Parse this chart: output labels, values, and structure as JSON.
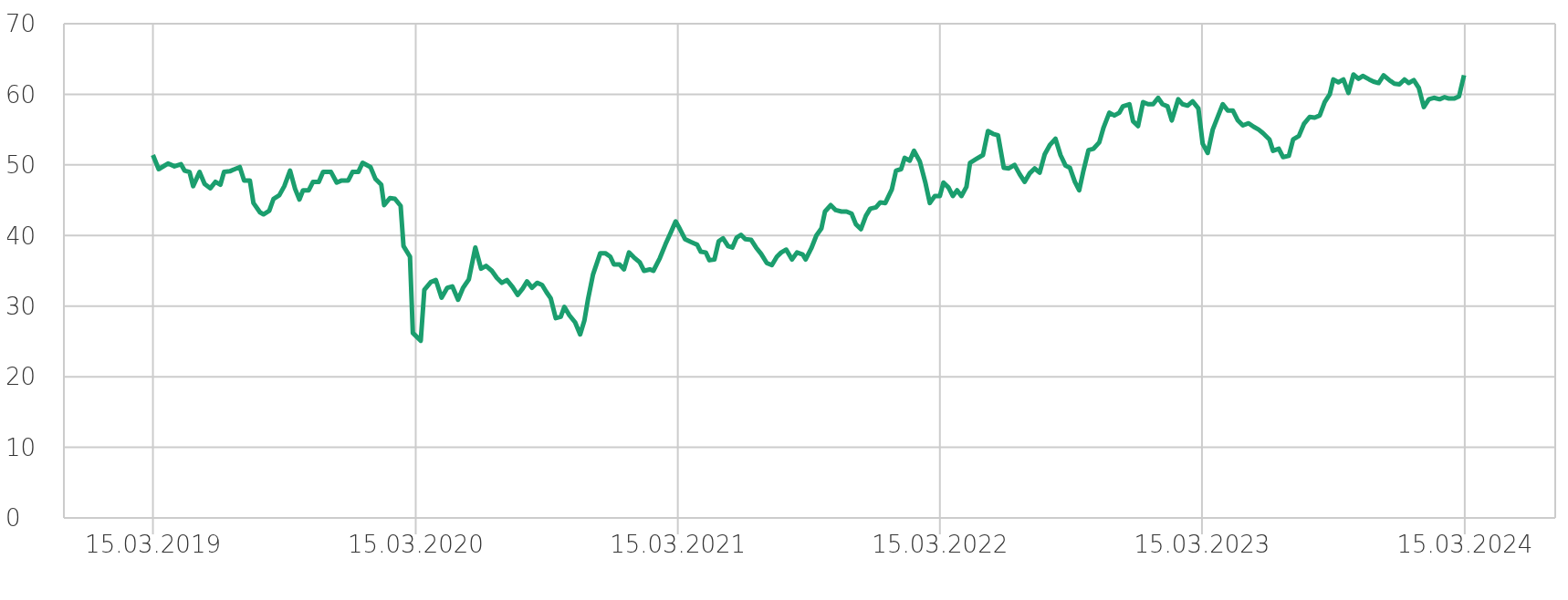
{
  "chart_data": {
    "type": "line",
    "x": [
      "2019-03-15",
      "2019-03-23",
      "2019-04-05",
      "2019-04-14",
      "2019-04-23",
      "2019-04-28",
      "2019-05-05",
      "2019-05-10",
      "2019-05-19",
      "2019-05-26",
      "2019-06-03",
      "2019-06-10",
      "2019-06-17",
      "2019-06-22",
      "2019-06-30",
      "2019-07-07",
      "2019-07-14",
      "2019-07-20",
      "2019-07-28",
      "2019-08-02",
      "2019-08-11",
      "2019-08-16",
      "2019-08-24",
      "2019-08-30",
      "2019-09-07",
      "2019-09-14",
      "2019-09-22",
      "2019-09-29",
      "2019-10-05",
      "2019-10-10",
      "2019-10-18",
      "2019-10-24",
      "2019-11-01",
      "2019-11-07",
      "2019-11-18",
      "2019-11-26",
      "2019-12-03",
      "2019-12-12",
      "2019-12-18",
      "2019-12-26",
      "2020-01-01",
      "2020-01-12",
      "2020-01-19",
      "2020-01-27",
      "2020-01-31",
      "2020-02-08",
      "2020-02-15",
      "2020-02-23",
      "2020-02-27",
      "2020-03-07",
      "2020-03-11",
      "2020-03-22",
      "2020-03-27",
      "2020-04-05",
      "2020-04-12",
      "2020-04-20",
      "2020-04-28",
      "2020-05-05",
      "2020-05-13",
      "2020-05-20",
      "2020-05-28",
      "2020-06-06",
      "2020-06-14",
      "2020-06-21",
      "2020-06-29",
      "2020-07-06",
      "2020-07-13",
      "2020-07-20",
      "2020-07-28",
      "2020-08-04",
      "2020-08-11",
      "2020-08-17",
      "2020-08-24",
      "2020-08-31",
      "2020-09-07",
      "2020-09-13",
      "2020-09-19",
      "2020-09-26",
      "2020-10-03",
      "2020-10-08",
      "2020-10-15",
      "2020-10-23",
      "2020-10-30",
      "2020-11-05",
      "2020-11-10",
      "2020-11-17",
      "2020-11-27",
      "2020-12-04",
      "2020-12-11",
      "2020-12-16",
      "2020-12-24",
      "2020-12-30",
      "2021-01-06",
      "2021-01-13",
      "2021-01-21",
      "2021-01-27",
      "2021-02-04",
      "2021-02-09",
      "2021-02-18",
      "2021-02-26",
      "2021-03-06",
      "2021-03-12",
      "2021-03-18",
      "2021-03-25",
      "2021-04-02",
      "2021-04-11",
      "2021-04-16",
      "2021-04-23",
      "2021-04-28",
      "2021-05-05",
      "2021-05-11",
      "2021-05-17",
      "2021-05-24",
      "2021-05-30",
      "2021-06-05",
      "2021-06-11",
      "2021-06-17",
      "2021-06-25",
      "2021-07-02",
      "2021-07-09",
      "2021-07-17",
      "2021-07-24",
      "2021-07-31",
      "2021-08-06",
      "2021-08-13",
      "2021-08-21",
      "2021-08-28",
      "2021-09-05",
      "2021-09-09",
      "2021-09-17",
      "2021-09-24",
      "2021-10-01",
      "2021-10-06",
      "2021-10-14",
      "2021-10-21",
      "2021-10-29",
      "2021-11-05",
      "2021-11-12",
      "2021-11-18",
      "2021-11-25",
      "2021-12-02",
      "2021-12-08",
      "2021-12-16",
      "2021-12-22",
      "2021-12-29",
      "2022-01-07",
      "2022-01-13",
      "2022-01-20",
      "2022-01-25",
      "2022-02-01",
      "2022-02-07",
      "2022-02-15",
      "2022-02-23",
      "2022-03-01",
      "2022-03-08",
      "2022-03-15",
      "2022-03-20",
      "2022-03-27",
      "2022-04-02",
      "2022-04-08",
      "2022-04-14",
      "2022-04-21",
      "2022-04-26",
      "2022-05-04",
      "2022-05-14",
      "2022-05-21",
      "2022-05-28",
      "2022-06-04",
      "2022-06-12",
      "2022-06-19",
      "2022-06-27",
      "2022-07-04",
      "2022-07-11",
      "2022-07-18",
      "2022-07-25",
      "2022-08-01",
      "2022-08-08",
      "2022-08-15",
      "2022-08-23",
      "2022-08-30",
      "2022-09-06",
      "2022-09-12",
      "2022-09-19",
      "2022-09-25",
      "2022-10-01",
      "2022-10-08",
      "2022-10-15",
      "2022-10-23",
      "2022-10-29",
      "2022-11-06",
      "2022-11-13",
      "2022-11-20",
      "2022-11-25",
      "2022-12-04",
      "2022-12-09",
      "2022-12-16",
      "2022-12-23",
      "2022-12-30",
      "2023-01-06",
      "2023-01-13",
      "2023-01-19",
      "2023-01-26",
      "2023-02-01",
      "2023-02-10",
      "2023-02-16",
      "2023-02-23",
      "2023-03-02",
      "2023-03-10",
      "2023-03-16",
      "2023-03-23",
      "2023-03-30",
      "2023-04-06",
      "2023-04-13",
      "2023-04-20",
      "2023-04-27",
      "2023-05-04",
      "2023-05-11",
      "2023-05-19",
      "2023-05-26",
      "2023-06-02",
      "2023-06-08",
      "2023-06-17",
      "2023-06-22",
      "2023-06-30",
      "2023-07-06",
      "2023-07-14",
      "2023-07-20",
      "2023-07-28",
      "2023-08-04",
      "2023-08-12",
      "2023-08-19",
      "2023-08-26",
      "2023-09-02",
      "2023-09-09",
      "2023-09-14",
      "2023-09-21",
      "2023-09-28",
      "2023-10-05",
      "2023-10-12",
      "2023-10-19",
      "2023-10-25",
      "2023-11-03",
      "2023-11-09",
      "2023-11-16",
      "2023-11-23",
      "2023-12-01",
      "2023-12-08",
      "2023-12-15",
      "2023-12-22",
      "2023-12-28",
      "2024-01-04",
      "2024-01-11",
      "2024-01-18",
      "2024-01-25",
      "2024-02-01",
      "2024-02-09",
      "2024-02-16",
      "2024-02-22",
      "2024-02-29",
      "2024-03-07",
      "2024-03-14"
    ],
    "series": [
      {
        "color": "#1b9e6e",
        "values": [
          51.4,
          49.4,
          50.2,
          49.8,
          50.1,
          49.2,
          49.0,
          47.0,
          49.0,
          47.3,
          46.7,
          47.6,
          47.2,
          49.0,
          49.1,
          49.4,
          49.7,
          47.8,
          47.8,
          44.6,
          43.3,
          43.0,
          43.5,
          45.2,
          45.7,
          47.0,
          49.2,
          46.6,
          45.1,
          46.4,
          46.4,
          47.6,
          47.6,
          49.0,
          49.0,
          47.5,
          47.8,
          47.8,
          49.0,
          49.0,
          50.3,
          49.7,
          48.0,
          47.2,
          44.3,
          45.3,
          45.2,
          44.2,
          38.5,
          37.0,
          26.2,
          25.1,
          32.3,
          33.4,
          33.7,
          31.2,
          32.6,
          32.8,
          30.9,
          32.6,
          33.8,
          38.3,
          35.3,
          35.7,
          35.0,
          34.0,
          33.3,
          33.7,
          32.7,
          31.6,
          32.5,
          33.5,
          32.6,
          33.3,
          33.0,
          32.0,
          31.1,
          28.3,
          28.5,
          29.9,
          28.7,
          27.7,
          26.0,
          28.0,
          31.0,
          34.5,
          37.5,
          37.5,
          37.0,
          35.9,
          35.9,
          35.2,
          37.6,
          36.9,
          36.2,
          35.0,
          35.2,
          35.0,
          36.8,
          38.8,
          40.6,
          42.0,
          40.9,
          39.5,
          39.1,
          38.7,
          37.7,
          37.6,
          36.5,
          36.6,
          39.2,
          39.6,
          38.5,
          38.3,
          39.7,
          40.1,
          39.5,
          39.4,
          38.3,
          37.4,
          36.1,
          35.8,
          37.0,
          37.6,
          38.0,
          36.6,
          37.6,
          37.3,
          36.6,
          38.2,
          40.0,
          41.0,
          43.4,
          44.3,
          43.6,
          43.4,
          43.4,
          43.1,
          41.6,
          40.9,
          42.8,
          43.8,
          44.0,
          44.7,
          44.6,
          46.5,
          49.2,
          49.4,
          51.0,
          50.6,
          52.0,
          50.5,
          47.4,
          44.6,
          45.6,
          45.6,
          47.5,
          46.8,
          45.6,
          46.4,
          45.6,
          46.9,
          50.3,
          50.8,
          51.4,
          54.8,
          54.4,
          54.2,
          49.6,
          49.5,
          50.0,
          48.7,
          47.6,
          48.8,
          49.5,
          48.9,
          51.5,
          52.8,
          53.7,
          51.4,
          49.9,
          49.6,
          47.6,
          46.4,
          49.2,
          52.1,
          52.3,
          53.2,
          55.3,
          57.4,
          57.0,
          57.4,
          58.3,
          58.6,
          56.2,
          55.5,
          58.9,
          58.6,
          58.6,
          59.5,
          58.6,
          58.3,
          56.3,
          59.3,
          58.6,
          58.4,
          59.0,
          58.0,
          53.0,
          51.7,
          55.0,
          56.8,
          58.6,
          57.7,
          57.7,
          56.3,
          55.6,
          55.9,
          55.4,
          55.0,
          54.5,
          53.6,
          52.0,
          52.3,
          51.1,
          51.3,
          53.6,
          54.1,
          55.8,
          56.8,
          56.7,
          57.0,
          58.9,
          60.0,
          62.1,
          61.7,
          62.1,
          60.2,
          62.8,
          62.2,
          62.6,
          62.1,
          61.8,
          61.6,
          62.7,
          62.0,
          61.5,
          61.4,
          62.1,
          61.6,
          62.0,
          60.9,
          58.2,
          59.3,
          59.5,
          59.3,
          59.6,
          59.4,
          59.4,
          59.7,
          62.7
        ]
      }
    ],
    "xlim": [
      "2018-11-11",
      "2024-07-19"
    ],
    "xticks": [
      {
        "value": "2019-03-15",
        "label": "15.03.2019"
      },
      {
        "value": "2020-03-15",
        "label": "15.03.2020"
      },
      {
        "value": "2021-03-15",
        "label": "15.03.2021"
      },
      {
        "value": "2022-03-15",
        "label": "15.03.2022"
      },
      {
        "value": "2023-03-15",
        "label": "15.03.2023"
      },
      {
        "value": "2024-03-15",
        "label": "15.03.2024"
      }
    ],
    "ylim": [
      0,
      70
    ],
    "yticks": [
      0,
      10,
      20,
      30,
      40,
      50,
      60,
      70
    ],
    "grid": true,
    "legend": false,
    "marker": "none",
    "line_style": "solid"
  }
}
